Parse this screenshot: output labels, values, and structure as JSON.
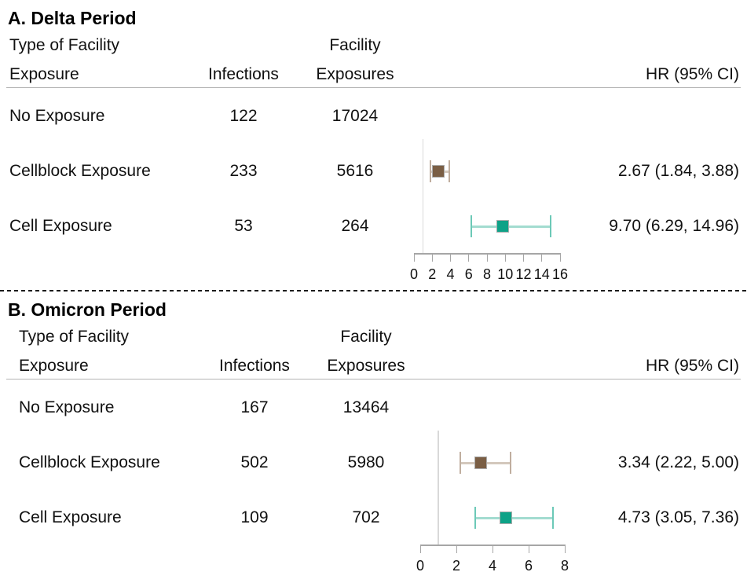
{
  "chart_data": [
    {
      "type": "forest",
      "panel_id": "A",
      "title": "A. Delta Period",
      "col_headers": {
        "exposure_line1": "Type of Facility",
        "exposure_line2": "Exposure",
        "infections": "Infections",
        "facility_line1": "Facility",
        "facility_line2": "Exposures",
        "hr": "HR (95% CI)"
      },
      "xaxis": {
        "min": 0,
        "max": 16,
        "tick_values": [
          0,
          2,
          4,
          6,
          8,
          10,
          12,
          14,
          16
        ],
        "ticks": [
          "0",
          "2",
          "4",
          "6",
          "8",
          "10",
          "12",
          "14",
          "16"
        ],
        "ref_line": 1
      },
      "rows": [
        {
          "exposure": "No Exposure",
          "infections": "122",
          "facility_exposures": "17024",
          "hr": null,
          "ci_low": null,
          "ci_high": null,
          "hr_label": "",
          "marker_color": null,
          "ci_color": null,
          "ci_cap_color": null
        },
        {
          "exposure": "Cellblock Exposure",
          "infections": "233",
          "facility_exposures": "5616",
          "hr": 2.67,
          "ci_low": 1.84,
          "ci_high": 3.88,
          "hr_label": "2.67 (1.84, 3.88)",
          "marker_color": "#7a5e44",
          "ci_color": "#d3c8bc",
          "ci_cap_color": "#c0ae9f"
        },
        {
          "exposure": "Cell Exposure",
          "infections": "53",
          "facility_exposures": "264",
          "hr": 9.7,
          "ci_low": 6.29,
          "ci_high": 14.96,
          "hr_label": "9.70 (6.29, 14.96)",
          "marker_color": "#0ea287",
          "ci_color": "#a3dcd0",
          "ci_cap_color": "#6cc9b7"
        }
      ]
    },
    {
      "type": "forest",
      "panel_id": "B",
      "title": "B. Omicron Period",
      "col_headers": {
        "exposure_line1": "Type of Facility",
        "exposure_line2": "Exposure",
        "infections": "Infections",
        "facility_line1": "Facility",
        "facility_line2": "Exposures",
        "hr": "HR (95% CI)"
      },
      "xaxis": {
        "min": 0,
        "max": 8,
        "tick_values": [
          0,
          2,
          4,
          6,
          8
        ],
        "ticks": [
          "0",
          "2",
          "4",
          "6",
          "8"
        ],
        "ref_line": 1
      },
      "rows": [
        {
          "exposure": "No Exposure",
          "infections": "167",
          "facility_exposures": "13464",
          "hr": null,
          "ci_low": null,
          "ci_high": null,
          "hr_label": "",
          "marker_color": null,
          "ci_color": null,
          "ci_cap_color": null
        },
        {
          "exposure": "Cellblock Exposure",
          "infections": "502",
          "facility_exposures": "5980",
          "hr": 3.34,
          "ci_low": 2.22,
          "ci_high": 5.0,
          "hr_label": "3.34 (2.22, 5.00)",
          "marker_color": "#7a5e44",
          "ci_color": "#d3c8bc",
          "ci_cap_color": "#c0ae9f"
        },
        {
          "exposure": "Cell Exposure",
          "infections": "109",
          "facility_exposures": "702",
          "hr": 4.73,
          "ci_low": 3.05,
          "ci_high": 7.36,
          "hr_label": "4.73 (3.05, 7.36)",
          "marker_color": "#0ea287",
          "ci_color": "#a3dcd0",
          "ci_cap_color": "#6cc9b7"
        }
      ]
    }
  ]
}
